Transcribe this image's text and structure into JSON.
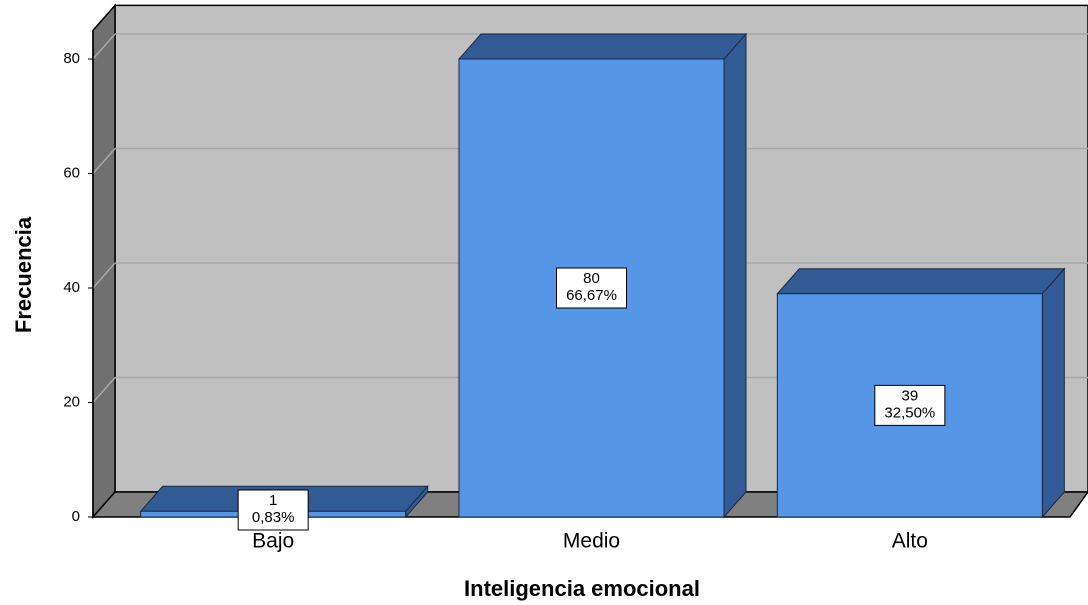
{
  "chart_data": {
    "type": "bar3d",
    "x_label": "Inteligencia emocional",
    "y_label": "Frecuencia",
    "categories": [
      "Bajo",
      "Medio",
      "Alto"
    ],
    "values": [
      1,
      80,
      39
    ],
    "percent_labels": [
      "0,83%",
      "66,67%",
      "32,50%"
    ],
    "color": "#5596e6",
    "side_color": "#325a94",
    "ylim": [
      0,
      85
    ],
    "yticks": [
      0,
      20,
      40,
      60,
      80
    ],
    "grid": true
  }
}
